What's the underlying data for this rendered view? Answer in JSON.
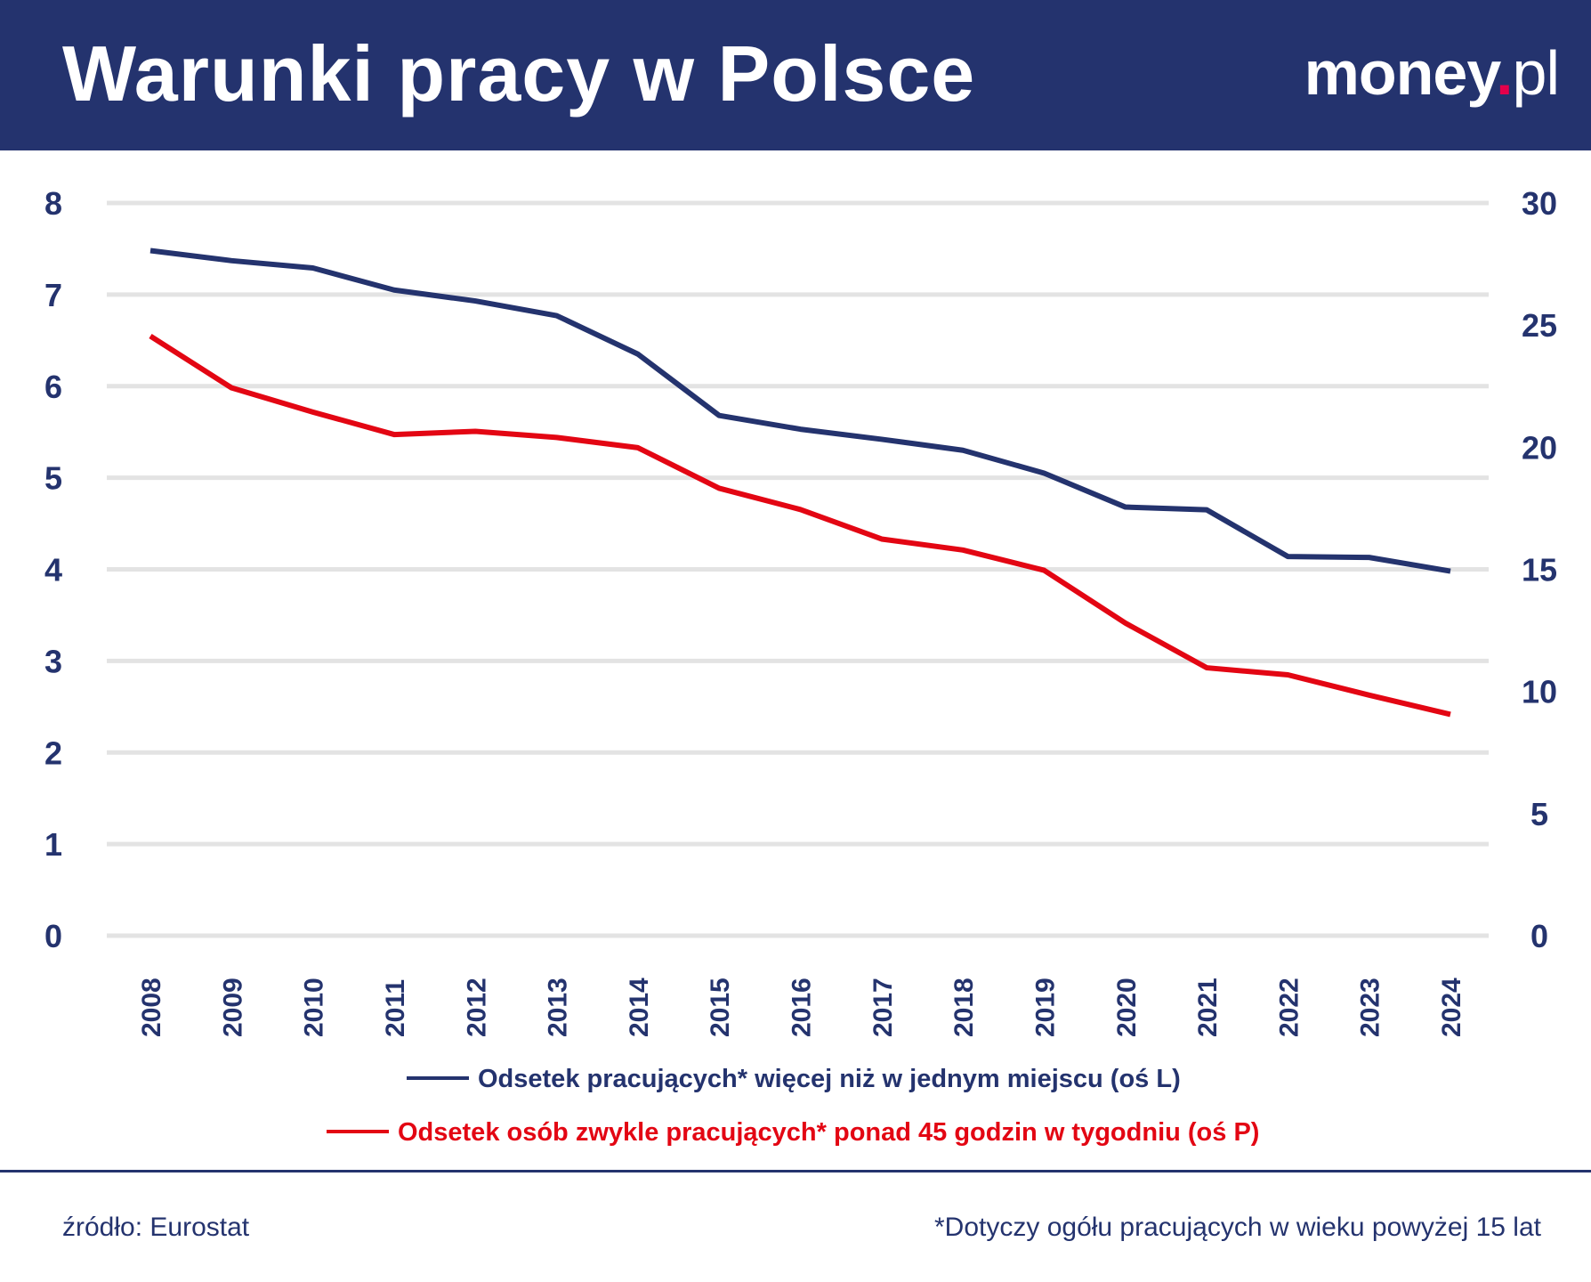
{
  "header": {
    "title": "Warunki pracy w Polsce",
    "logo": "money.pl"
  },
  "colors": {
    "header_bg": "#24336e",
    "series1": "#24336e",
    "series2": "#e30613",
    "grid": "#e3e3e3"
  },
  "chart_data": {
    "type": "line",
    "title": "Warunki pracy w Polsce",
    "x": [
      "2008",
      "2009",
      "2010",
      "2011",
      "2012",
      "2013",
      "2014",
      "2015",
      "2016",
      "2017",
      "2018",
      "2019",
      "2020",
      "2021",
      "2022",
      "2023",
      "2024"
    ],
    "y_left": {
      "range": [
        0,
        8
      ],
      "ticks": [
        "0",
        "1",
        "2",
        "3",
        "4",
        "5",
        "6",
        "7",
        "8"
      ]
    },
    "y_right": {
      "range": [
        0,
        30
      ],
      "ticks": [
        "0",
        "5",
        "10",
        "15",
        "20",
        "25",
        "30"
      ]
    },
    "grid": true,
    "legend": "bottom",
    "series": [
      {
        "name": "Odsetek pracujących* więcej niż w jednym miejscu (oś L)",
        "axis": "left",
        "color": "#24336e",
        "values": [
          7.48,
          7.37,
          7.29,
          7.05,
          6.93,
          6.77,
          6.35,
          5.68,
          5.53,
          5.42,
          5.3,
          5.05,
          4.68,
          4.65,
          4.14,
          4.13,
          3.98
        ]
      },
      {
        "name": "Odsetek osób zwykle pracujących* ponad 45 godzin w tygodniu (oś P)",
        "axis": "right",
        "color": "#e30613",
        "values": [
          24.55,
          22.43,
          21.44,
          20.52,
          20.65,
          20.4,
          19.98,
          18.32,
          17.45,
          16.24,
          15.79,
          14.96,
          12.8,
          10.97,
          10.68,
          9.85,
          9.06
        ]
      }
    ]
  },
  "footer": {
    "source": "źródło: Eurostat",
    "note": "*Dotyczy ogółu pracujących w wieku powyżej 15 lat"
  }
}
